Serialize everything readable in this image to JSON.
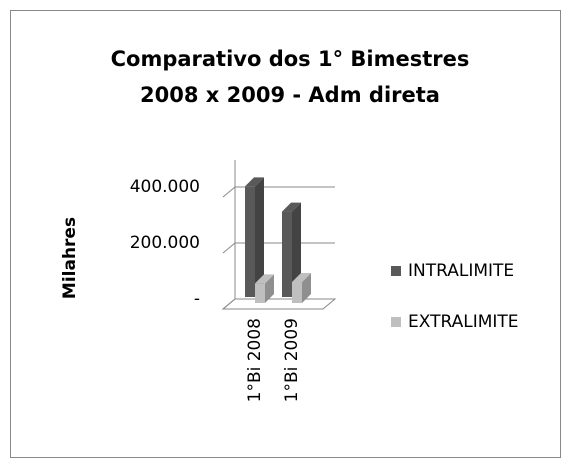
{
  "chart_data": {
    "type": "bar3d",
    "title": [
      "Comparativo dos 1° Bimestres",
      "2008 x 2009 - Adm direta"
    ],
    "y_label": "Milahres",
    "categories": [
      "1°Bi 2008",
      "1°Bi 2009"
    ],
    "series": [
      {
        "name": "INTRALIMITE",
        "color": "#595959",
        "values": [
          395000,
          305000
        ]
      },
      {
        "name": "EXTRALIMITE",
        "color": "#bfbfbf",
        "values": [
          70000,
          75000
        ]
      }
    ],
    "ylim": [
      0,
      400000
    ],
    "yticks": [
      {
        "value": 0,
        "label": "-"
      },
      {
        "value": 200000,
        "label": "200.000"
      },
      {
        "value": 400000,
        "label": "400.000"
      }
    ],
    "grid": true,
    "legend": "right"
  }
}
